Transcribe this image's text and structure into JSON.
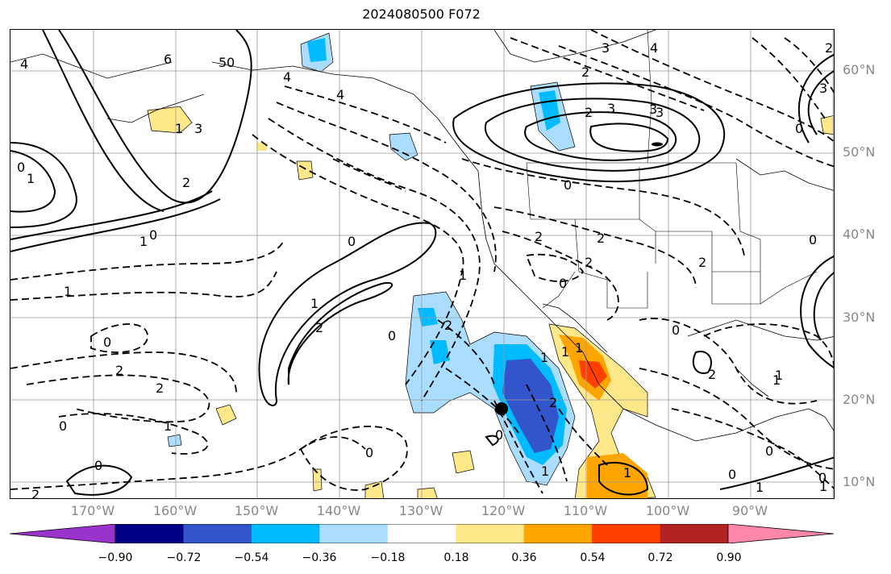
{
  "title": "2024080500 F072",
  "lon_labels": [
    "170°W",
    "160°W",
    "150°W",
    "140°W",
    "130°W",
    "120°W",
    "110°W",
    "100°W",
    "90°W"
  ],
  "lat_labels": [
    "60°N",
    "50°N",
    "40°N",
    "30°N",
    "20°N",
    "10°N"
  ],
  "contour_labels": [
    "4",
    "6",
    "5",
    "4",
    "4",
    "3",
    "1",
    "3",
    "1",
    "0",
    "2",
    "1",
    "0",
    "0",
    "1",
    "2",
    "1",
    "0",
    "2",
    "2",
    "1",
    "0",
    "0",
    "2",
    "0",
    "0",
    "1",
    "2",
    "3",
    "3",
    "2",
    "4",
    "3",
    "2",
    "0",
    "0",
    "2",
    "2",
    "2",
    "2",
    "0",
    "1",
    "1",
    "1",
    "2",
    "0",
    "1",
    "0",
    "1",
    "2",
    "0",
    "1",
    "1",
    "0",
    "0",
    "1",
    "0",
    "1",
    "2",
    "3",
    "0"
  ],
  "colorbar": {
    "ticks": [
      "−0.90",
      "−0.72",
      "−0.54",
      "−0.36",
      "−0.18",
      "0.18",
      "0.36",
      "0.54",
      "0.72",
      "0.90"
    ],
    "colors": [
      "#9933cc",
      "#000088",
      "#3355cc",
      "#00bbff",
      "#aaddff",
      "#ffffff",
      "#ffe88a",
      "#ffa500",
      "#ff4000",
      "#b22222",
      "#ff88aa"
    ]
  },
  "marker_label": ""
}
